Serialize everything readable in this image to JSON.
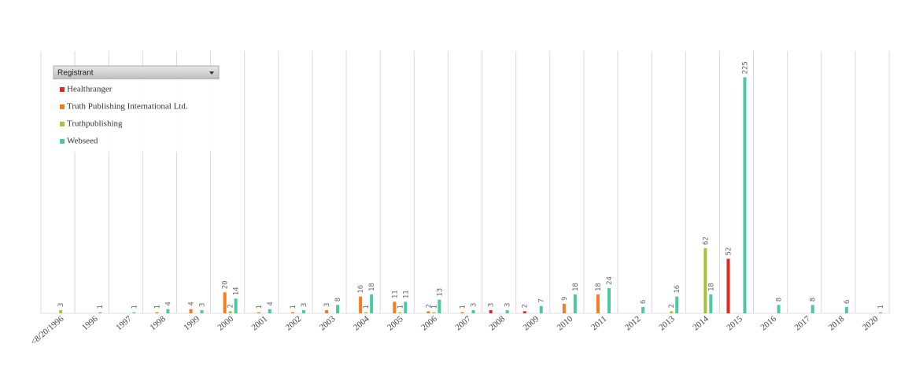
{
  "chart_data": {
    "type": "bar",
    "legend_title": "Registrant",
    "categories": [
      "<8/20/1996",
      "1996",
      "1997",
      "1998",
      "1999",
      "2000",
      "2001",
      "2002",
      "2003",
      "2004",
      "2005",
      "2006",
      "2007",
      "2008",
      "2009",
      "2010",
      "2011",
      "2012",
      "2013",
      "2014",
      "2015",
      "2016",
      "2017",
      "2018",
      "2020"
    ],
    "series": [
      {
        "name": "Healthranger",
        "color": "#e8261c",
        "values": [
          null,
          null,
          null,
          null,
          null,
          null,
          null,
          null,
          null,
          null,
          null,
          null,
          null,
          3,
          2,
          null,
          null,
          null,
          null,
          null,
          52,
          null,
          null,
          null,
          null
        ]
      },
      {
        "name": "Truth Publishing International Ltd.",
        "color": "#f57c1f",
        "values": [
          null,
          null,
          null,
          1,
          4,
          20,
          1,
          1,
          3,
          16,
          11,
          2,
          1,
          null,
          null,
          9,
          18,
          null,
          null,
          null,
          null,
          null,
          null,
          null,
          null
        ]
      },
      {
        "name": "Truthpublishing",
        "color": "#a8c23a",
        "values": [
          3,
          null,
          null,
          null,
          null,
          2,
          null,
          null,
          null,
          1,
          1,
          1,
          null,
          null,
          null,
          null,
          null,
          null,
          2,
          62,
          null,
          null,
          null,
          null,
          null
        ]
      },
      {
        "name": "Webseed",
        "color": "#4cc9a0",
        "values": [
          null,
          1,
          1,
          4,
          3,
          14,
          4,
          3,
          8,
          18,
          11,
          13,
          3,
          3,
          7,
          18,
          24,
          6,
          16,
          18,
          225,
          8,
          8,
          6,
          1
        ]
      }
    ],
    "ylim": [
      0,
      250
    ],
    "legend": "top-left"
  }
}
